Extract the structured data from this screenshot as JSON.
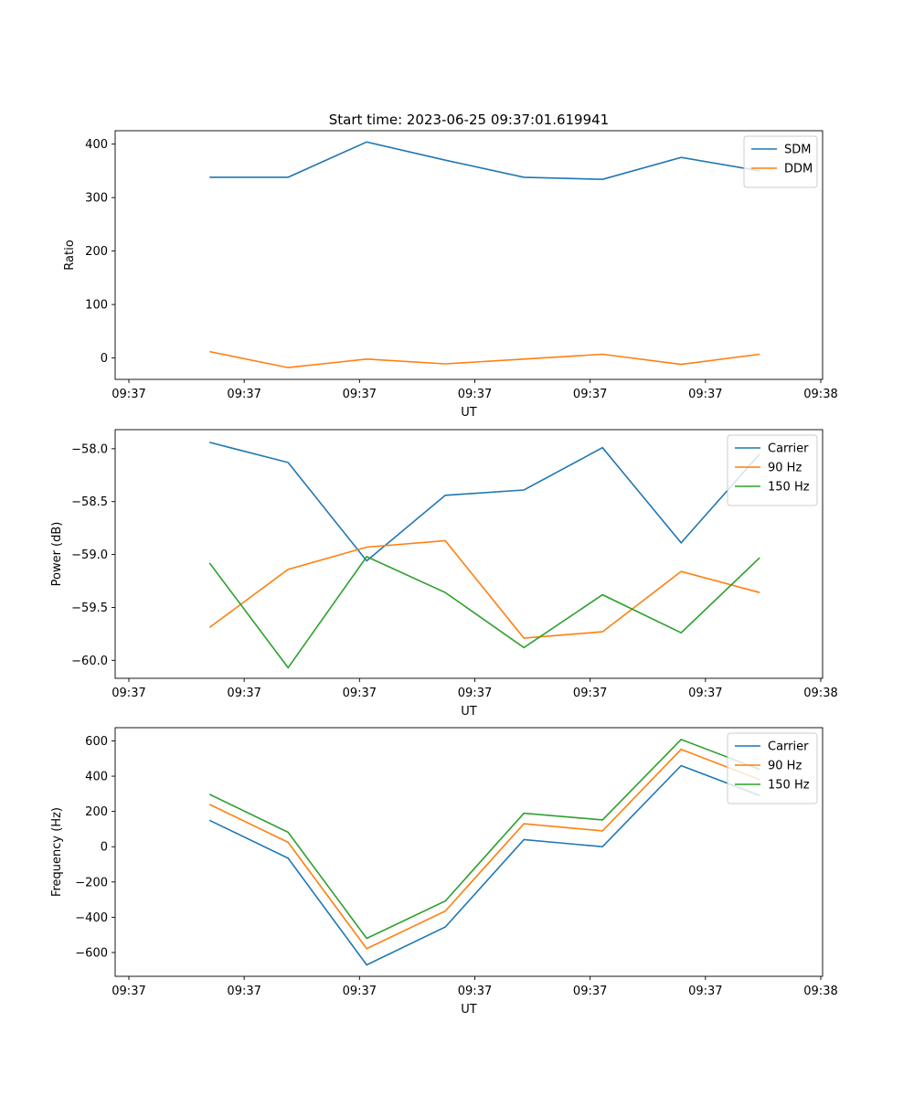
{
  "figure_title": "Start time: 2023-06-25 09:37:01.619941",
  "chart_data": [
    {
      "type": "line",
      "title": "Start time: 2023-06-25 09:37:01.619941",
      "xlabel": "UT",
      "ylabel": "Ratio",
      "x_tick_labels": [
        "09:37",
        "09:37",
        "09:37",
        "09:37",
        "09:37",
        "09:37",
        "09:38"
      ],
      "x": [
        1,
        2,
        3,
        4,
        5,
        6,
        7,
        8
      ],
      "xlim": [
        -0.2,
        8.8
      ],
      "yticks": [
        0,
        100,
        200,
        300,
        400
      ],
      "ylim": [
        -40,
        425
      ],
      "legend_position": "top-right",
      "series": [
        {
          "name": "SDM",
          "color": "#1f77b4",
          "values": [
            338,
            338,
            404,
            370,
            338,
            334,
            375,
            350
          ]
        },
        {
          "name": "DDM",
          "color": "#ff7f0e",
          "values": [
            12,
            -18,
            -2,
            -11,
            -2,
            7,
            -12,
            7
          ]
        }
      ]
    },
    {
      "type": "line",
      "title": "",
      "xlabel": "UT",
      "ylabel": "Power (dB)",
      "x_tick_labels": [
        "09:37",
        "09:37",
        "09:37",
        "09:37",
        "09:37",
        "09:37",
        "09:38"
      ],
      "x": [
        1,
        2,
        3,
        4,
        5,
        6,
        7,
        8
      ],
      "xlim": [
        -0.2,
        8.8
      ],
      "yticks": [
        -60.0,
        -59.5,
        -59.0,
        -58.5,
        -58.0
      ],
      "ytick_labels": [
        "−60.0",
        "−59.5",
        "−59.0",
        "−58.5",
        "−58.0"
      ],
      "ylim": [
        -60.17,
        -57.82
      ],
      "legend_position": "top-right",
      "series": [
        {
          "name": "Carrier",
          "color": "#1f77b4",
          "values": [
            -57.94,
            -58.13,
            -59.06,
            -58.44,
            -58.39,
            -57.99,
            -58.89,
            -58.05
          ]
        },
        {
          "name": "90 Hz",
          "color": "#ff7f0e",
          "values": [
            -59.69,
            -59.14,
            -58.93,
            -58.87,
            -59.79,
            -59.73,
            -59.16,
            -59.36
          ]
        },
        {
          "name": "150 Hz",
          "color": "#2ca02c",
          "values": [
            -59.08,
            -60.07,
            -59.02,
            -59.36,
            -59.88,
            -59.38,
            -59.74,
            -59.03
          ]
        }
      ]
    },
    {
      "type": "line",
      "title": "",
      "xlabel": "UT",
      "ylabel": "Frequency (Hz)",
      "x_tick_labels": [
        "09:37",
        "09:37",
        "09:37",
        "09:37",
        "09:37",
        "09:37",
        "09:38"
      ],
      "x": [
        1,
        2,
        3,
        4,
        5,
        6,
        7,
        8
      ],
      "xlim": [
        -0.2,
        8.8
      ],
      "yticks": [
        -600,
        -400,
        -200,
        0,
        200,
        400,
        600
      ],
      "ytick_labels": [
        "−600",
        "−400",
        "−200",
        "0",
        "200",
        "400",
        "600"
      ],
      "ylim": [
        -735,
        675
      ],
      "legend_position": "top-right",
      "series": [
        {
          "name": "Carrier",
          "color": "#1f77b4",
          "values": [
            150,
            -65,
            -670,
            -455,
            40,
            0,
            460,
            290
          ]
        },
        {
          "name": "90 Hz",
          "color": "#ff7f0e",
          "values": [
            240,
            25,
            -578,
            -365,
            130,
            90,
            552,
            380
          ]
        },
        {
          "name": "150 Hz",
          "color": "#2ca02c",
          "values": [
            297,
            82,
            -520,
            -308,
            190,
            152,
            608,
            438
          ]
        }
      ]
    }
  ]
}
